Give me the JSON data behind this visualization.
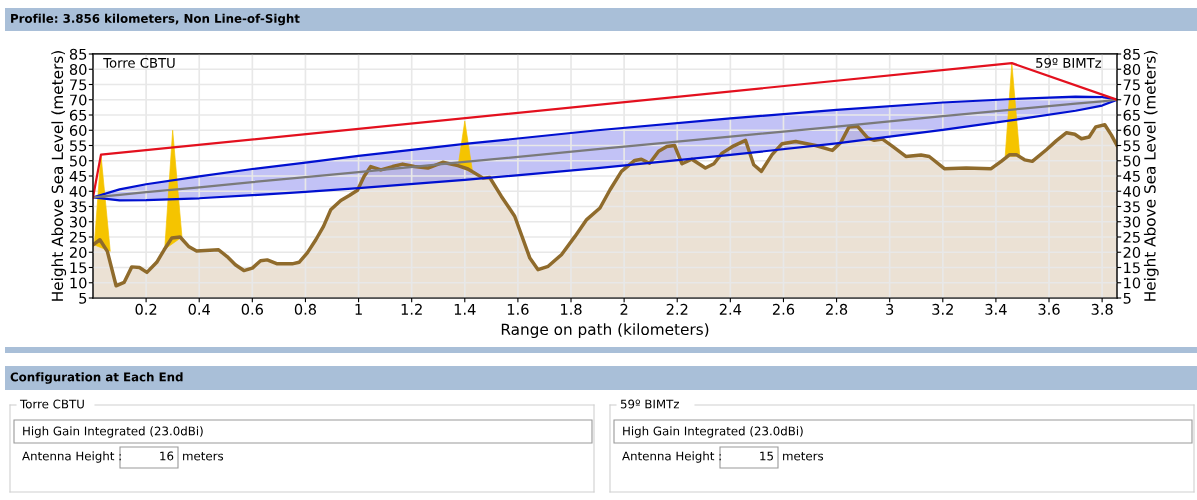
{
  "chart_data": [
    {
      "type": "line",
      "title": "Profile: 3.856 kilometers, Non Line-of-Sight",
      "xlabel": "Range on path (kilometers)",
      "ylabel": "Height Above Sea Level (meters)",
      "y2label": "Height Above Sea Level (meters)",
      "annotations": [
        "Torre CBTU",
        "59º BIMTz"
      ],
      "series": [
        {
          "type": "area",
          "color": "#8f6b2c",
          "x": [
            0.0,
            0.026,
            0.054,
            0.087,
            0.117,
            0.146,
            0.175,
            0.203,
            0.24,
            0.268,
            0.297,
            0.328,
            0.36,
            0.39,
            0.473,
            0.505,
            0.536,
            0.568,
            0.6,
            0.631,
            0.656,
            0.694,
            0.75,
            0.776,
            0.807,
            0.839,
            0.868,
            0.895,
            0.933,
            0.965,
            0.996,
            1.021,
            1.046,
            1.084,
            1.128,
            1.166,
            1.21,
            1.261,
            1.317,
            1.374,
            1.412,
            1.469,
            1.494,
            1.538,
            1.588,
            1.645,
            1.676,
            1.714,
            1.764,
            1.815,
            1.859,
            1.909,
            1.947,
            1.99,
            2.04,
            2.065,
            2.096,
            2.13,
            2.161,
            2.19,
            2.218,
            2.255,
            2.306,
            2.338,
            2.369,
            2.413,
            2.457,
            2.488,
            2.517,
            2.557,
            2.595,
            2.646,
            2.721,
            2.784,
            2.816,
            2.847,
            2.879,
            2.917,
            2.942,
            2.973,
            3.011,
            3.061,
            3.118,
            3.149,
            3.206,
            3.288,
            3.382,
            3.42,
            3.452,
            3.477,
            3.508,
            3.537,
            3.59,
            3.628,
            3.666,
            3.697,
            3.722,
            3.751,
            3.776,
            3.81,
            3.835,
            3.856
          ],
          "values": [
            22.4,
            24.1,
            20.3,
            9.0,
            10.1,
            15.2,
            15.0,
            13.4,
            16.7,
            20.8,
            24.7,
            25.0,
            21.9,
            20.4,
            20.8,
            18.6,
            15.9,
            14.0,
            14.8,
            17.2,
            17.5,
            16.2,
            16.2,
            16.7,
            19.8,
            24.1,
            28.5,
            33.9,
            37.0,
            38.6,
            40.3,
            44.9,
            48.1,
            47.0,
            48.1,
            48.9,
            48.1,
            47.6,
            49.5,
            48.4,
            47.3,
            44.3,
            44.5,
            38.3,
            31.8,
            18.1,
            14.3,
            15.4,
            19.2,
            25.2,
            30.7,
            34.5,
            40.5,
            46.5,
            50.1,
            50.5,
            49.2,
            53.1,
            54.7,
            55.0,
            49.0,
            50.5,
            47.6,
            49.0,
            52.5,
            54.9,
            56.7,
            48.7,
            46.5,
            52.0,
            55.6,
            56.3,
            55.0,
            53.4,
            56.0,
            61.1,
            61.3,
            57.5,
            56.7,
            57.1,
            54.7,
            51.4,
            51.9,
            51.4,
            47.4,
            47.6,
            47.4,
            49.8,
            52.0,
            52.0,
            50.3,
            49.8,
            53.6,
            56.6,
            59.2,
            58.7,
            57.2,
            57.8,
            61.1,
            61.8,
            58.4,
            55.0
          ]
        },
        {
          "type": "area",
          "color": "#f5c400",
          "x": [
            0.005,
            0.03,
            0.065,
            0.1,
            0.27,
            0.3,
            0.335,
            0.8,
            1.375,
            1.4,
            1.43,
            2.0,
            3.435,
            3.46,
            3.49
          ],
          "values": [
            22.4,
            52,
            20.3,
            null,
            21,
            60,
            25,
            null,
            48.4,
            63,
            46,
            null,
            51.5,
            82,
            51.5
          ]
        },
        {
          "type": "line",
          "color": "#7a7a7a",
          "x": [
            0,
            0.1,
            0.2,
            0.4,
            0.6,
            0.8,
            1.0,
            1.4,
            1.9,
            2.4,
            2.8,
            3.2,
            3.5,
            3.7,
            3.8,
            3.856
          ],
          "values": [
            38,
            38.8,
            39.7,
            41.3,
            43.0,
            44.6,
            46.3,
            49.6,
            53.8,
            57.9,
            61.2,
            64.6,
            67.1,
            68.7,
            69.5,
            70
          ],
          "upper": [
            38,
            40.6,
            42.3,
            44.9,
            47.3,
            49.4,
            51.6,
            55.5,
            60.0,
            63.9,
            66.7,
            69.1,
            70.4,
            71.0,
            70.9,
            70
          ],
          "lower": [
            38,
            37.0,
            37.1,
            37.7,
            38.7,
            39.8,
            41.0,
            43.7,
            47.6,
            51.9,
            55.7,
            60.1,
            63.8,
            66.4,
            68.1,
            70
          ]
        },
        {
          "type": "line",
          "color": "#e3101e",
          "x": [
            0,
            0.03,
            3.46,
            3.856
          ],
          "values": [
            38,
            52,
            82,
            70
          ]
        }
      ],
      "xlim": [
        0,
        3.856
      ],
      "xticks": [
        0.2,
        0.4,
        0.6,
        0.8,
        1,
        1.2,
        1.4,
        1.6,
        1.8,
        2,
        2.2,
        2.4,
        2.6,
        2.8,
        3,
        3.2,
        3.4,
        3.6,
        3.8
      ],
      "ylim": [
        5,
        85
      ],
      "yticks": [
        5,
        10,
        15,
        20,
        25,
        30,
        35,
        40,
        45,
        50,
        55,
        60,
        65,
        70,
        75,
        80,
        85
      ],
      "y2lim": [
        5,
        85
      ],
      "y2ticks": [
        5,
        10,
        15,
        20,
        25,
        30,
        35,
        40,
        45,
        50,
        55,
        60,
        65,
        70,
        75,
        80,
        85
      ],
      "grid": true
    },
    {
      "type": "other",
      "title": "Configuration at Each End",
      "annotations": [
        "Torre CBTU",
        "High Gain Integrated (23.0dBi)",
        "Antenna Height :",
        "16",
        "meters",
        "59º BIMTz",
        "High Gain Integrated (23.0dBi)",
        "Antenna Height :",
        "15",
        "meters"
      ]
    }
  ]
}
